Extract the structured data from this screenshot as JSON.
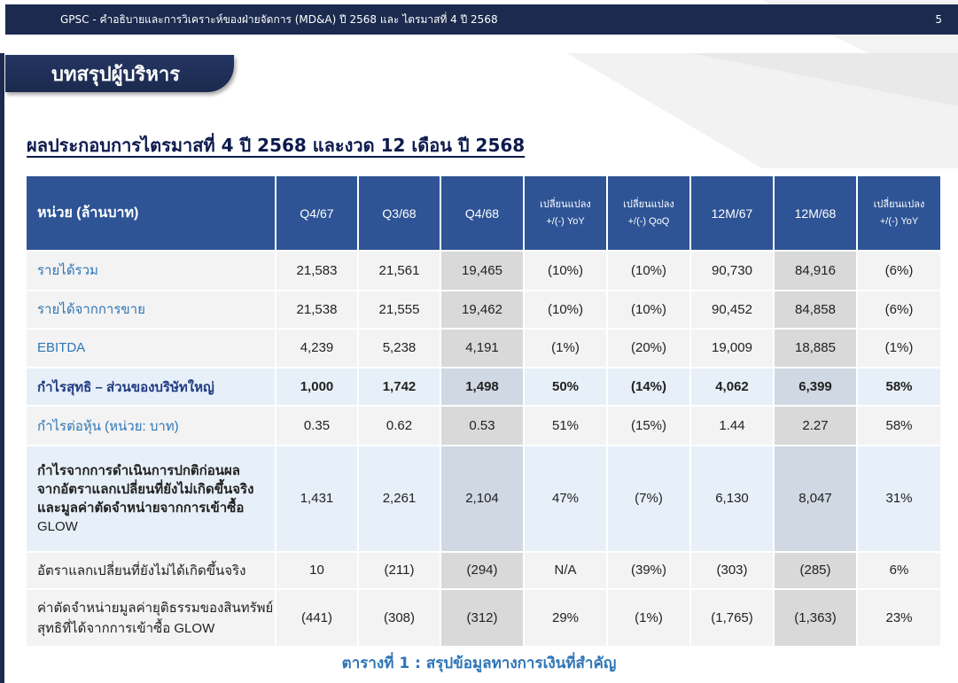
{
  "header": {
    "title": "GPSC - คำอธิบายและการวิเคราะห์ของฝ่ายจัดการ (MD&A) ปี 2568 และ ไตรมาสที่ 4 ปี 2568",
    "page_number": "5"
  },
  "section_tab": "บทสรุปผู้บริหาร",
  "main_title": "ผลประกอบการไตรมาสที่ 4 ปี 2568 และงวด 12 เดือน ปี 2568",
  "table": {
    "header": {
      "unit": "หน่วย (ล้านบาท)",
      "q4_67": "Q4/67",
      "q3_68": "Q3/68",
      "q4_68": "Q4/68",
      "chg_yoy_1": "เปลี่ยนแปลง",
      "chg_yoy_2": "+/(-) YoY",
      "chg_qoq_1": "เปลี่ยนแปลง",
      "chg_qoq_2": "+/(-) QoQ",
      "m12_67": "12M/67",
      "m12_68": "12M/68",
      "chg_12m_1": "เปลี่ยนแปลง",
      "chg_12m_2": "+/(-) YoY"
    },
    "rows": [
      {
        "label": "รายได้รวม",
        "q4_67": "21,583",
        "q3_68": "21,561",
        "q4_68": "19,465",
        "yoy": "(10%)",
        "qoq": "(10%)",
        "m12_67": "90,730",
        "m12_68": "84,916",
        "yoy12": "(6%)"
      },
      {
        "label": "รายได้จากการขาย",
        "q4_67": "21,538",
        "q3_68": "21,555",
        "q4_68": "19,462",
        "yoy": "(10%)",
        "qoq": "(10%)",
        "m12_67": "90,452",
        "m12_68": "84,858",
        "yoy12": "(6%)"
      },
      {
        "label": "EBITDA",
        "q4_67": "4,239",
        "q3_68": "5,238",
        "q4_68": "4,191",
        "yoy": "(1%)",
        "qoq": "(20%)",
        "m12_67": "19,009",
        "m12_68": "18,885",
        "yoy12": "(1%)"
      },
      {
        "label": "กำไรสุทธิ – ส่วนของบริษัทใหญ่",
        "q4_67": "1,000",
        "q3_68": "1,742",
        "q4_68": "1,498",
        "yoy": "50%",
        "qoq": "(14%)",
        "m12_67": "4,062",
        "m12_68": "6,399",
        "yoy12": "58%"
      },
      {
        "label": "กำไรต่อหุ้น (หน่วย: บาท)",
        "q4_67": "0.35",
        "q3_68": "0.62",
        "q4_68": "0.53",
        "yoy": "51%",
        "qoq": "(15%)",
        "m12_67": "1.44",
        "m12_68": "2.27",
        "yoy12": "58%"
      },
      {
        "label_lines": [
          "กำไรจากการดำเนินการปกติก่อนผล",
          "จากอัตราแลกเปลี่ยนที่ยังไม่เกิดขึ้นจริง",
          "และมูลค่าตัดจำหน่ายจากการเข้าซื้อ",
          "GLOW"
        ],
        "q4_67": "1,431",
        "q3_68": "2,261",
        "q4_68": "2,104",
        "yoy": "47%",
        "qoq": "(7%)",
        "m12_67": "6,130",
        "m12_68": "8,047",
        "yoy12": "31%"
      },
      {
        "label": "อัตราแลกเปลี่ยนที่ยังไม่ได้เกิดขึ้นจริง",
        "q4_67": "10",
        "q3_68": "(211)",
        "q4_68": "(294)",
        "yoy": "N/A",
        "qoq": "(39%)",
        "m12_67": "(303)",
        "m12_68": "(285)",
        "yoy12": "6%"
      },
      {
        "label_lines": [
          "ค่าตัดจำหน่ายมูลค่ายุติธรรมของสินทรัพย์",
          "สุทธิที่ได้จากการเข้าซื้อ  GLOW"
        ],
        "q4_67": "(441)",
        "q3_68": "(308)",
        "q4_68": "(312)",
        "yoy": "29%",
        "qoq": "(1%)",
        "m12_67": "(1,765)",
        "m12_68": "(1,363)",
        "yoy12": "23%"
      }
    ]
  },
  "caption": "ตารางที่ 1 : สรุปข้อมูลทางการเงินที่สำคัญ"
}
